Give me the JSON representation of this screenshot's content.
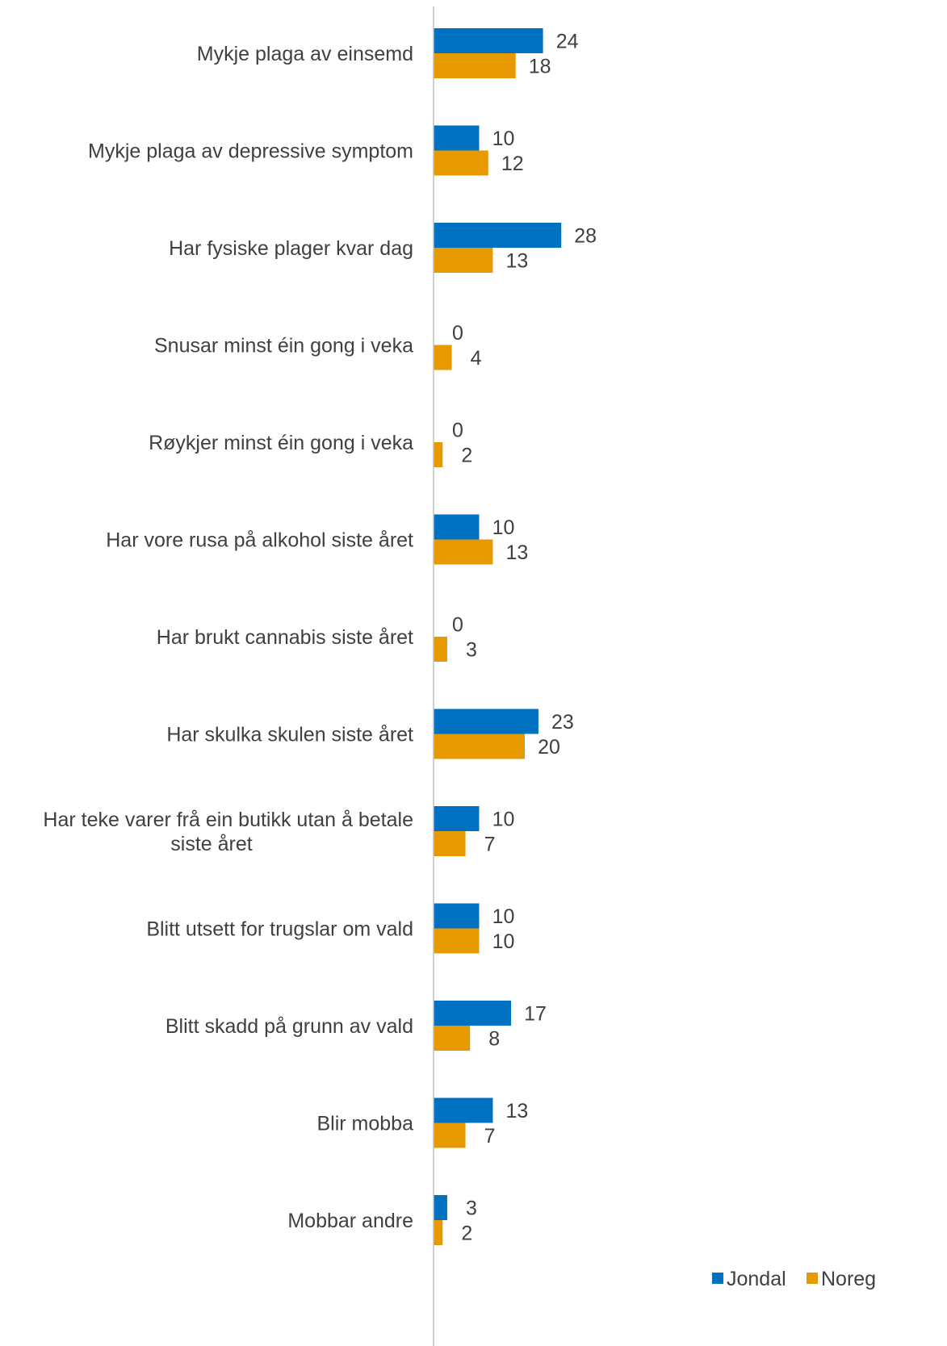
{
  "chart_data": {
    "type": "bar",
    "orientation": "horizontal",
    "categories": [
      "Mykje plaga av einsemd",
      "Mykje plaga av depressive symptom",
      "Har fysiske plager kvar dag",
      "Snusar minst éin gong i veka",
      "Røykjer minst éin gong i veka",
      "Har vore rusa på alkohol siste året",
      "Har brukt cannabis siste året",
      "Har skulka skulen siste året",
      "Har teke varer frå ein butikk utan å betale siste året",
      "Blitt utsett for trugslar om vald",
      "Blitt skadd på grunn av vald",
      "Blir mobba",
      "Mobbar andre"
    ],
    "series": [
      {
        "name": "Jondal",
        "color": "#0070C0",
        "values": [
          24,
          10,
          28,
          0,
          0,
          10,
          0,
          23,
          10,
          10,
          17,
          13,
          3
        ]
      },
      {
        "name": "Noreg",
        "color": "#E69A00",
        "values": [
          18,
          12,
          13,
          4,
          2,
          13,
          3,
          20,
          7,
          10,
          8,
          7,
          2
        ]
      }
    ],
    "data_labels": true,
    "legend_position": "bottom-right",
    "grid": false,
    "xlim": [
      0,
      40
    ]
  }
}
